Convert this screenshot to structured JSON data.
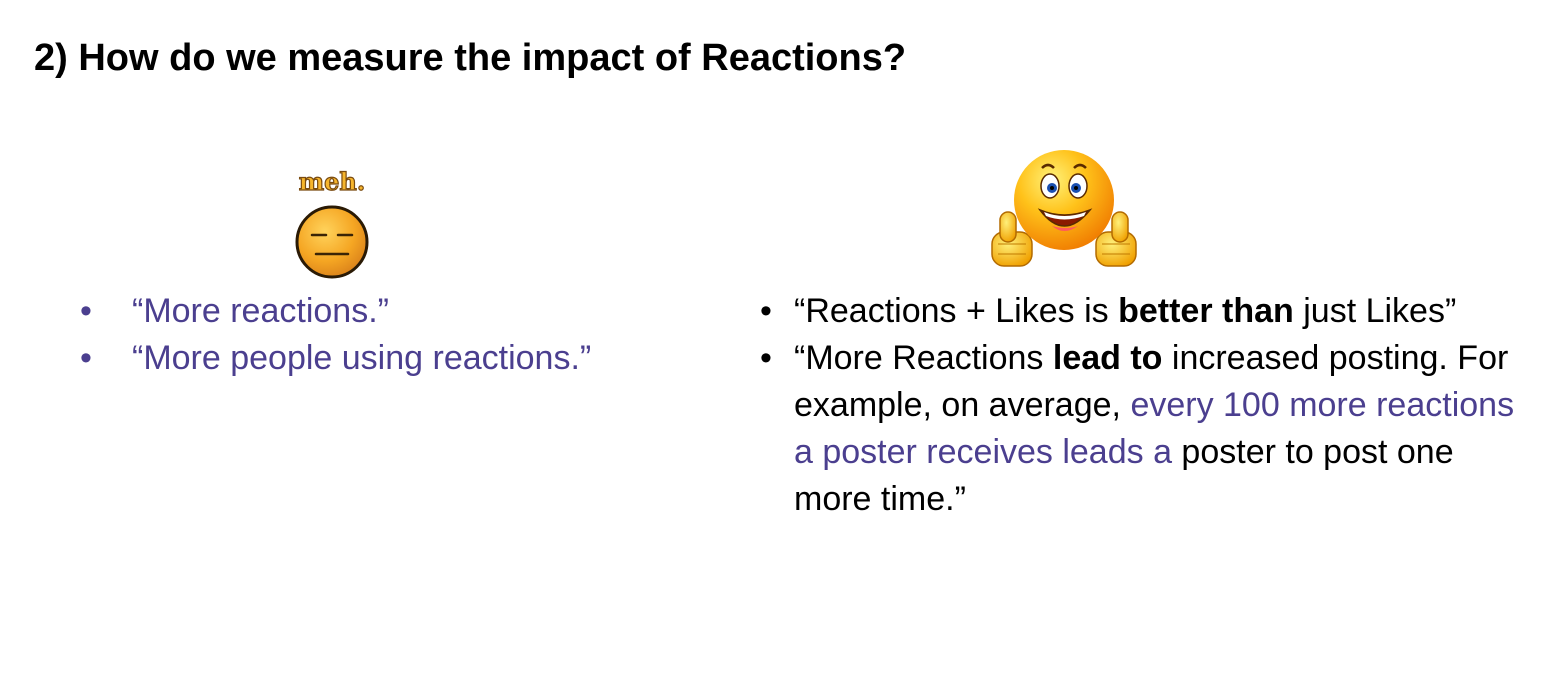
{
  "slide": {
    "title": "2) How do we measure the impact of Reactions?",
    "left_column": {
      "graphic": {
        "icon": "meh-emoji-icon",
        "caption": "meh."
      },
      "bullets": [
        "“More reactions.”",
        "“More people using reactions.”"
      ]
    },
    "right_column": {
      "graphic": {
        "icon": "thumbs-up-smiley-icon"
      },
      "bullet1": {
        "part1": "“Reactions + Likes is ",
        "bold": "better than",
        "part2": " just Likes”"
      },
      "bullet2": {
        "part1": "“More Reactions ",
        "bold": "lead to",
        "part2": " increased posting. For example, on average, ",
        "highlight": "every 100 more reactions a poster receives leads a",
        "part3": " poster to post one more time.”"
      }
    },
    "bullet_glyph": "•"
  },
  "colors": {
    "text": "#000000",
    "accent_purple": "#4b3f8f",
    "emoji_orange": "#f5a623",
    "background": "#ffffff"
  }
}
